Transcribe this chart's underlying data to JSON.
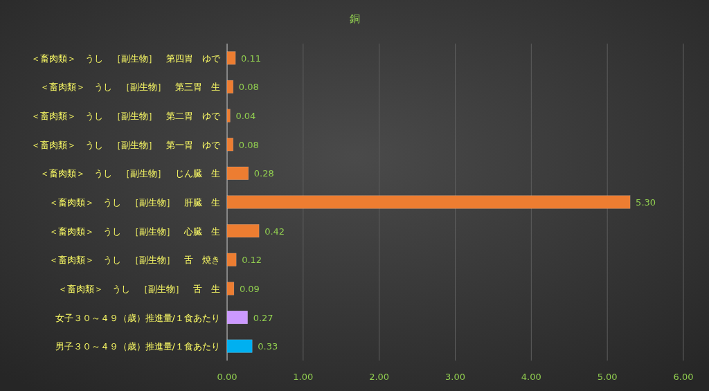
{
  "chart_data": {
    "type": "bar",
    "orientation": "horizontal",
    "title": "銅",
    "categories": [
      "＜畜肉類＞　うし　［副生物］　第四胃　ゆで",
      "＜畜肉類＞　うし　［副生物］　第三胃　生",
      "＜畜肉類＞　うし　［副生物］　第二胃　ゆで",
      "＜畜肉類＞　うし　［副生物］　第一胃　ゆで",
      "＜畜肉類＞　うし　［副生物］　じん臓　生",
      "＜畜肉類＞　うし　［副生物］　肝臓　生",
      "＜畜肉類＞　うし　［副生物］　心臓　生",
      "＜畜肉類＞　うし　［副生物］　舌　焼き",
      "＜畜肉類＞　うし　［副生物］　舌　生",
      "女子３０～４９（歳）推進量/１食あたり",
      "男子３０～４９（歳）推進量/１食あたり"
    ],
    "values": [
      0.11,
      0.08,
      0.04,
      0.08,
      0.28,
      5.3,
      0.42,
      0.12,
      0.09,
      0.27,
      0.33
    ],
    "colors": [
      "#ed7d31",
      "#ed7d31",
      "#ed7d31",
      "#ed7d31",
      "#ed7d31",
      "#ed7d31",
      "#ed7d31",
      "#ed7d31",
      "#ed7d31",
      "#cc99ff",
      "#00b0f0"
    ],
    "value_labels": [
      "0.11",
      "0.08",
      "0.04",
      "0.08",
      "0.28",
      "5.30",
      "0.42",
      "0.12",
      "0.09",
      "0.27",
      "0.33"
    ],
    "xlim": [
      0,
      6
    ],
    "xticks": [
      {
        "value": 0,
        "label": "0.00"
      },
      {
        "value": 1,
        "label": "1.00"
      },
      {
        "value": 2,
        "label": "2.00"
      },
      {
        "value": 3,
        "label": "3.00"
      },
      {
        "value": 4,
        "label": "4.00"
      },
      {
        "value": 5,
        "label": "5.00"
      },
      {
        "value": 6,
        "label": "6.00"
      }
    ],
    "grid": "x"
  }
}
